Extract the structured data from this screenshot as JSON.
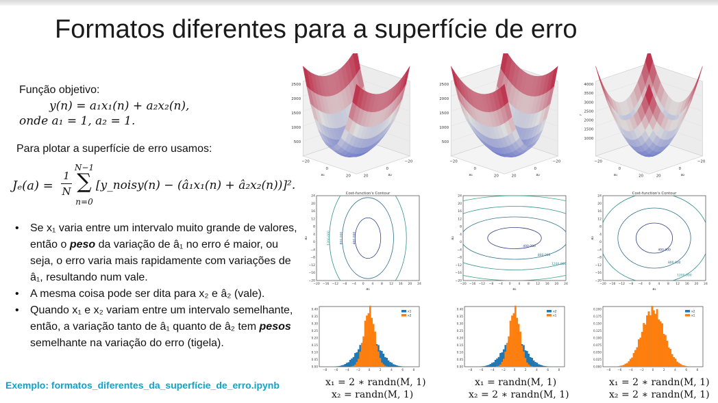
{
  "slide": {
    "title": "Formatos diferentes para a superfície de erro",
    "objective_label": "Função objetivo:",
    "model_eq": "y(n) = a₁x₁(n) + a₂x₂(n),",
    "weights_eq": "onde a₁ = 1, a₂ = 1.",
    "plot_intro": "Para plotar a superfície de erro usamos:",
    "cost_eq_lhs": "Jₑ(a) =",
    "cost_eq_rhs": "[y_noisy(n) − (â₁x₁(n) + â₂x₂(n))]².",
    "cost_frac_num": "1",
    "cost_frac_den": "N",
    "cost_sum_upper": "N−1",
    "cost_sum_lower": "n=0",
    "bullets": [
      "Se x₁ varia entre um intervalo muito grande de valores, então o peso da variação de â₁ no erro é maior, ou seja, o erro varia mais rapidamente com variações de â₁, resultando num vale.",
      "A mesma coisa pode ser dita para x₂ e â₂ (vale).",
      "Quando x₁ e x₂ variam entre um intervalo semelhante, então, a variação tanto de â₁ quanto de â₂ tem pesos semelhante na variação do erro (tigela)."
    ],
    "bullet_parts": {
      "b1_a": "Se x₁ varia entre um intervalo muito grande de valores, então o ",
      "b1_bold": "peso",
      "b1_b": " da variação de â₁ no erro é maior, ou seja, o erro varia mais rapidamente com variações de â₁, resultando num vale.",
      "b2": "A mesma coisa pode ser dita para x₂ e â₂ (vale).",
      "b3_a": "Quando x₁ e x₂ variam entre um intervalo semelhante, então, a variação tanto de â₁ quanto de â₂ tem ",
      "b3_bold": "pesos",
      "b3_b": " semelhante na variação do erro (tigela)."
    },
    "example_link": "Exemplo: formatos_diferentes_da_superfície_de_erro.ipynb",
    "accent_color": "#0da4c9"
  },
  "chart_data": [
    {
      "type": "surface3d",
      "zticks": [
        "500",
        "1000",
        "1500",
        "2000",
        "2500"
      ],
      "xticks": [
        "−20",
        "0",
        "20"
      ],
      "yticks": [
        "−20",
        "0",
        "20"
      ],
      "xlabel": "a₁",
      "ylabel": "a₂",
      "zlabel": "J"
    },
    {
      "type": "surface3d",
      "zticks": [
        "500",
        "1000",
        "1500",
        "2000",
        "2500"
      ],
      "xticks": [
        "−20",
        "0",
        "20"
      ],
      "yticks": [
        "−20",
        "0",
        "20"
      ],
      "xlabel": "a₁",
      "ylabel": "a₂",
      "zlabel": "J"
    },
    {
      "type": "surface3d",
      "zticks": [
        "1000",
        "1500",
        "2000",
        "2500",
        "3000",
        "3500",
        "4000"
      ],
      "xticks": [
        "−20",
        "0",
        "20"
      ],
      "yticks": [
        "−20",
        "0",
        "20"
      ],
      "xlabel": "a₁",
      "ylabel": "a₂",
      "zlabel": "J"
    },
    {
      "type": "contour",
      "title": "Cost-function's Contour",
      "xlabel": "a₁",
      "ylabel": "a₂",
      "xlim": [
        -20,
        24
      ],
      "ylim": [
        -20,
        24
      ],
      "ticks": [
        "−20",
        "−16",
        "−12",
        "−8",
        "−4",
        "0",
        "4",
        "8",
        "12",
        "16",
        "20",
        "24"
      ],
      "levels": [
        "400.000",
        "800.000",
        "1200.000"
      ]
    },
    {
      "type": "contour",
      "title": "",
      "xlabel": "a₁",
      "ylabel": "a₂",
      "xlim": [
        -20,
        24
      ],
      "ylim": [
        -20,
        24
      ],
      "ticks": [
        "−20",
        "−16",
        "−12",
        "−8",
        "−4",
        "0",
        "4",
        "8",
        "12",
        "16",
        "20",
        "24"
      ],
      "levels": [
        "400.000",
        "800.000",
        "1200.000",
        "1600.000",
        "2000.000"
      ]
    },
    {
      "type": "contour",
      "title": "Cost-function's Contour",
      "xlabel": "a₁",
      "ylabel": "a₂",
      "xlim": [
        -20,
        24
      ],
      "ylim": [
        -20,
        24
      ],
      "ticks": [
        "−20",
        "−16",
        "−12",
        "−8",
        "−4",
        "0",
        "4",
        "8",
        "12",
        "16",
        "20",
        "24"
      ],
      "levels": [
        "400.000",
        "800.000",
        "1200.000",
        "1600.000"
      ]
    },
    {
      "type": "histogram",
      "legend": [
        "x1",
        "x2"
      ],
      "xticks": [
        "−8",
        "−6",
        "−4",
        "−2",
        "0",
        "2",
        "4",
        "6",
        "8"
      ],
      "yticks": [
        "0.00",
        "0.05",
        "0.10",
        "0.15",
        "0.20",
        "0.25",
        "0.30",
        "0.35",
        "0.40"
      ],
      "series": [
        {
          "name": "x1",
          "std": 2,
          "color": "#1f77b4"
        },
        {
          "name": "x2",
          "std": 1,
          "color": "#ff7f0e"
        }
      ],
      "caption": [
        "x₁ = 2 ∗ randn(M, 1)",
        "x₂ = randn(M, 1)"
      ]
    },
    {
      "type": "histogram",
      "legend": [
        "x2",
        "x1"
      ],
      "xticks": [
        "−8",
        "−6",
        "−4",
        "−2",
        "0",
        "2",
        "4",
        "6",
        "8"
      ],
      "yticks": [
        "0.00",
        "0.05",
        "0.10",
        "0.15",
        "0.20",
        "0.25",
        "0.30",
        "0.35",
        "0.40"
      ],
      "series": [
        {
          "name": "x2",
          "std": 2,
          "color": "#1f77b4"
        },
        {
          "name": "x1",
          "std": 1,
          "color": "#ff7f0e"
        }
      ],
      "caption": [
        "x₁ = randn(M, 1)",
        "x₂ = 2 ∗ randn(M, 1)"
      ]
    },
    {
      "type": "histogram",
      "legend": [
        "x2",
        "x1"
      ],
      "xticks": [
        "−8",
        "−6",
        "−4",
        "−2",
        "0",
        "2",
        "4",
        "6",
        "8"
      ],
      "yticks": [
        "0.000",
        "0.025",
        "0.050",
        "0.075",
        "0.100",
        "0.125",
        "0.150",
        "0.175",
        "0.200"
      ],
      "series": [
        {
          "name": "x2",
          "std": 2,
          "color": "#1f77b4"
        },
        {
          "name": "x1",
          "std": 2,
          "color": "#ff7f0e"
        }
      ],
      "caption": [
        "x₁ = 2 ∗ randn(M, 1)",
        "x₂ = 2 ∗ randn(M, 1)"
      ]
    }
  ]
}
